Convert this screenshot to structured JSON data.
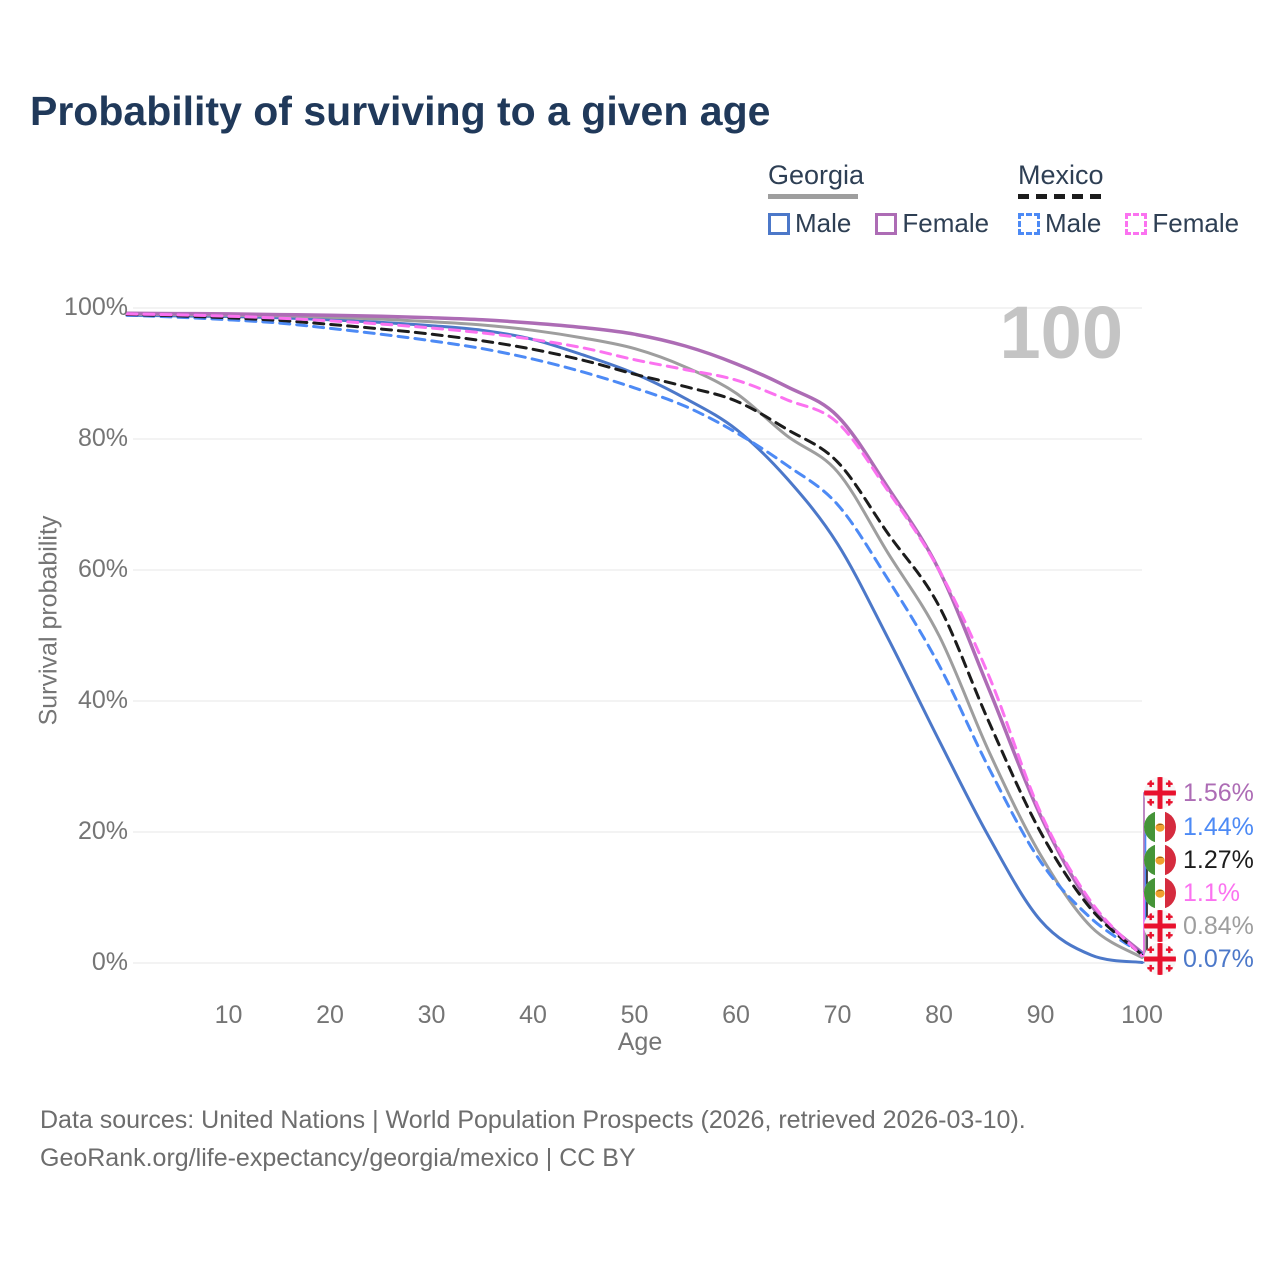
{
  "title": "Probability of surviving to a given age",
  "watermark": "100",
  "legend": {
    "groups": [
      {
        "country": "Georgia",
        "line_style": "solid",
        "underline_color": "#9e9e9e",
        "items": [
          {
            "label": "Male",
            "color": "#4c78c9",
            "dashed": false
          },
          {
            "label": "Female",
            "color": "#ad6cb5",
            "dashed": false
          }
        ]
      },
      {
        "country": "Mexico",
        "line_style": "dashed",
        "underline_color": "#1c1c1c",
        "items": [
          {
            "label": "Male",
            "color": "#4d8af5",
            "dashed": true
          },
          {
            "label": "Female",
            "color": "#fb72f0",
            "dashed": true
          }
        ]
      }
    ]
  },
  "chart_data": {
    "type": "line",
    "title": "Probability of surviving to a given age",
    "xlabel": "Age",
    "ylabel": "Survival probability",
    "xlim": [
      0,
      100
    ],
    "ylim": [
      0,
      100
    ],
    "grid": "horizontal",
    "xticks": [
      10,
      20,
      30,
      40,
      50,
      60,
      70,
      80,
      90,
      100
    ],
    "yticks": [
      {
        "value": 0,
        "label": "0%"
      },
      {
        "value": 20,
        "label": "20%"
      },
      {
        "value": 40,
        "label": "40%"
      },
      {
        "value": 60,
        "label": "60%"
      },
      {
        "value": 80,
        "label": "80%"
      },
      {
        "value": 100,
        "label": "100%"
      }
    ],
    "x_ages": [
      0,
      5,
      10,
      15,
      20,
      25,
      30,
      35,
      40,
      45,
      50,
      55,
      60,
      65,
      70,
      75,
      80,
      85,
      90,
      95,
      100
    ],
    "series": [
      {
        "name": "Georgia Male",
        "country": "Georgia",
        "sex": "Male",
        "color": "#4c78c9",
        "dashed": false,
        "width": 3,
        "values": [
          98.9,
          98.8,
          98.7,
          98.5,
          98.2,
          97.8,
          97.3,
          96.6,
          95.2,
          92.8,
          90.0,
          86.2,
          81.5,
          74.0,
          64.0,
          49.5,
          34.0,
          19.0,
          6.5,
          1.2,
          0.07
        ]
      },
      {
        "name": "Georgia Both sexes",
        "country": "Georgia",
        "sex": "Both",
        "color": "#9e9e9e",
        "dashed": false,
        "width": 3,
        "values": [
          99.05,
          99.0,
          98.9,
          98.8,
          98.6,
          98.3,
          97.9,
          97.4,
          96.6,
          95.4,
          93.8,
          91.0,
          87.0,
          80.5,
          75.0,
          62.5,
          50.0,
          32.0,
          16.5,
          5.5,
          0.84
        ]
      },
      {
        "name": "Georgia Female",
        "country": "Georgia",
        "sex": "Female",
        "color": "#ad6cb5",
        "dashed": false,
        "width": 3.5,
        "values": [
          99.2,
          99.15,
          99.1,
          99.0,
          98.9,
          98.75,
          98.5,
          98.2,
          97.7,
          97.0,
          96.0,
          94.2,
          91.5,
          88.0,
          83.5,
          72.5,
          60.0,
          41.5,
          22.5,
          8.8,
          1.56
        ]
      },
      {
        "name": "Mexico Male",
        "country": "Mexico",
        "sex": "Male",
        "color": "#4d8af5",
        "dashed": true,
        "width": 3,
        "values": [
          98.9,
          98.6,
          98.2,
          97.7,
          96.9,
          96.0,
          95.0,
          93.8,
          92.2,
          90.2,
          87.8,
          85.0,
          81.0,
          76.0,
          70.0,
          58.5,
          45.5,
          29.5,
          15.5,
          6.8,
          1.44
        ]
      },
      {
        "name": "Mexico Both sexes",
        "country": "Mexico",
        "sex": "Both",
        "color": "#1c1c1c",
        "dashed": true,
        "width": 3,
        "values": [
          99.0,
          98.8,
          98.5,
          98.1,
          97.5,
          96.8,
          96.0,
          95.0,
          93.7,
          92.0,
          89.9,
          88.0,
          85.8,
          81.5,
          76.5,
          65.5,
          54.5,
          36.5,
          20.0,
          8.2,
          1.27
        ]
      },
      {
        "name": "Mexico Female",
        "country": "Mexico",
        "sex": "Female",
        "color": "#fb72f0",
        "dashed": true,
        "width": 3,
        "values": [
          99.1,
          98.95,
          98.75,
          98.45,
          98.05,
          97.55,
          96.95,
          96.2,
          95.2,
          93.9,
          92.1,
          90.6,
          89.0,
          86.0,
          82.5,
          72.0,
          60.0,
          43.5,
          23.0,
          9.3,
          1.1
        ]
      }
    ],
    "end_labels": [
      {
        "flag": "georgia",
        "series": "Georgia Female",
        "text": "1.56%",
        "color": "#ad6cb5"
      },
      {
        "flag": "mexico",
        "series": "Mexico Male",
        "text": "1.44%",
        "color": "#4d8af5"
      },
      {
        "flag": "mexico",
        "series": "Mexico Both sexes",
        "text": "1.27%",
        "color": "#1c1c1c"
      },
      {
        "flag": "mexico",
        "series": "Mexico Female",
        "text": "1.1%",
        "color": "#fb72f0"
      },
      {
        "flag": "georgia",
        "series": "Georgia Both sexes",
        "text": "0.84%",
        "color": "#9e9e9e"
      },
      {
        "flag": "georgia",
        "series": "Georgia Male",
        "text": "0.07%",
        "color": "#4c78c9"
      }
    ],
    "age_max_annotation": "100"
  },
  "footer": {
    "line1": "Data sources: United Nations | World Population Prospects (2026, retrieved 2026-03-10).",
    "line2": "GeoRank.org/life-expectancy/georgia/mexico | CC BY"
  }
}
